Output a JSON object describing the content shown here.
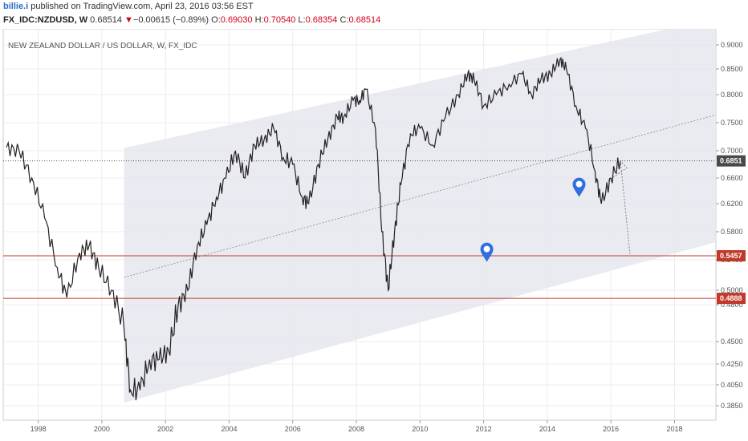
{
  "header": {
    "author": "billie.i",
    "published_text": " published on TradingView.com, April 23, 2016 03:56 EST",
    "symbol": "FX_IDC:NZDUSD, W",
    "last": "0.68514",
    "change_arrow": "▼",
    "change": "−0.00615 (−0.89%)",
    "o_label": "O:",
    "o_value": "0.69030",
    "h_label": "H:",
    "h_value": "0.70540",
    "l_label": "L:",
    "l_value": "0.68354",
    "c_label": "C:",
    "c_value": "0.68514"
  },
  "chart_data": {
    "type": "line",
    "title": "NEW ZEALAND DOLLAR / US DOLLAR, W, FX_IDC",
    "x_ticks": [
      "1998",
      "2000",
      "2002",
      "2004",
      "2006",
      "2008",
      "2010",
      "2012",
      "2014",
      "2016",
      "2018"
    ],
    "y_ticks": [
      "0.9000",
      "0.8500",
      "0.8000",
      "0.7500",
      "0.7000",
      "0.6600",
      "0.6200",
      "0.5800",
      "0.5400",
      "0.5000",
      "0.4800",
      "0.4500",
      "0.4250",
      "0.4050",
      "0.3850"
    ],
    "xlim": [
      1996.9,
      2019.3
    ],
    "series": [
      {
        "x": [
          1997.0,
          1997.4,
          1997.8,
          1998.2,
          1998.6,
          1998.9,
          1999.3,
          1999.6,
          1999.9,
          2000.3,
          2000.7,
          2000.9,
          2001.2,
          2001.5,
          2001.8,
          2002.1,
          2002.4,
          2002.7,
          2003.0,
          2003.3,
          2003.6,
          2003.9,
          2004.2,
          2004.5,
          2004.8,
          2005.1,
          2005.4,
          2005.7,
          2006.0,
          2006.3,
          2006.5,
          2006.8,
          2007.1,
          2007.4,
          2007.6,
          2007.9,
          2008.1,
          2008.3,
          2008.6,
          2008.8,
          2009.0,
          2009.2,
          2009.4,
          2009.7,
          2010.0,
          2010.4,
          2010.8,
          2011.2,
          2011.5,
          2011.7,
          2012.0,
          2012.4,
          2012.8,
          2013.2,
          2013.5,
          2013.8,
          2014.1,
          2014.4,
          2014.6,
          2014.9,
          2015.2,
          2015.5,
          2015.7,
          2016.0,
          2016.3
        ],
        "values": [
          0.706,
          0.7,
          0.66,
          0.6,
          0.53,
          0.49,
          0.55,
          0.56,
          0.53,
          0.5,
          0.46,
          0.4,
          0.4,
          0.43,
          0.43,
          0.44,
          0.48,
          0.5,
          0.56,
          0.59,
          0.63,
          0.66,
          0.7,
          0.66,
          0.71,
          0.72,
          0.74,
          0.69,
          0.68,
          0.63,
          0.62,
          0.68,
          0.72,
          0.76,
          0.76,
          0.79,
          0.79,
          0.81,
          0.74,
          0.58,
          0.5,
          0.58,
          0.65,
          0.73,
          0.74,
          0.71,
          0.76,
          0.8,
          0.84,
          0.83,
          0.78,
          0.8,
          0.82,
          0.84,
          0.8,
          0.83,
          0.84,
          0.87,
          0.85,
          0.78,
          0.74,
          0.67,
          0.62,
          0.66,
          0.685
        ]
      }
    ],
    "price_labels": [
      {
        "value": "0.6851",
        "color": "#4a4a4a"
      },
      {
        "value": "0.5457",
        "color": "#c0392b"
      },
      {
        "value": "0.4888",
        "color": "#c0392b"
      }
    ],
    "horizontal_levels": [
      0.5457,
      0.4888
    ],
    "current_price": 0.6851,
    "colors": {
      "price_line": "#222222",
      "channel_fill": "#e6e6ee",
      "support_line": "#c0392b",
      "marker": "#2f6fe0"
    },
    "grid": true
  }
}
